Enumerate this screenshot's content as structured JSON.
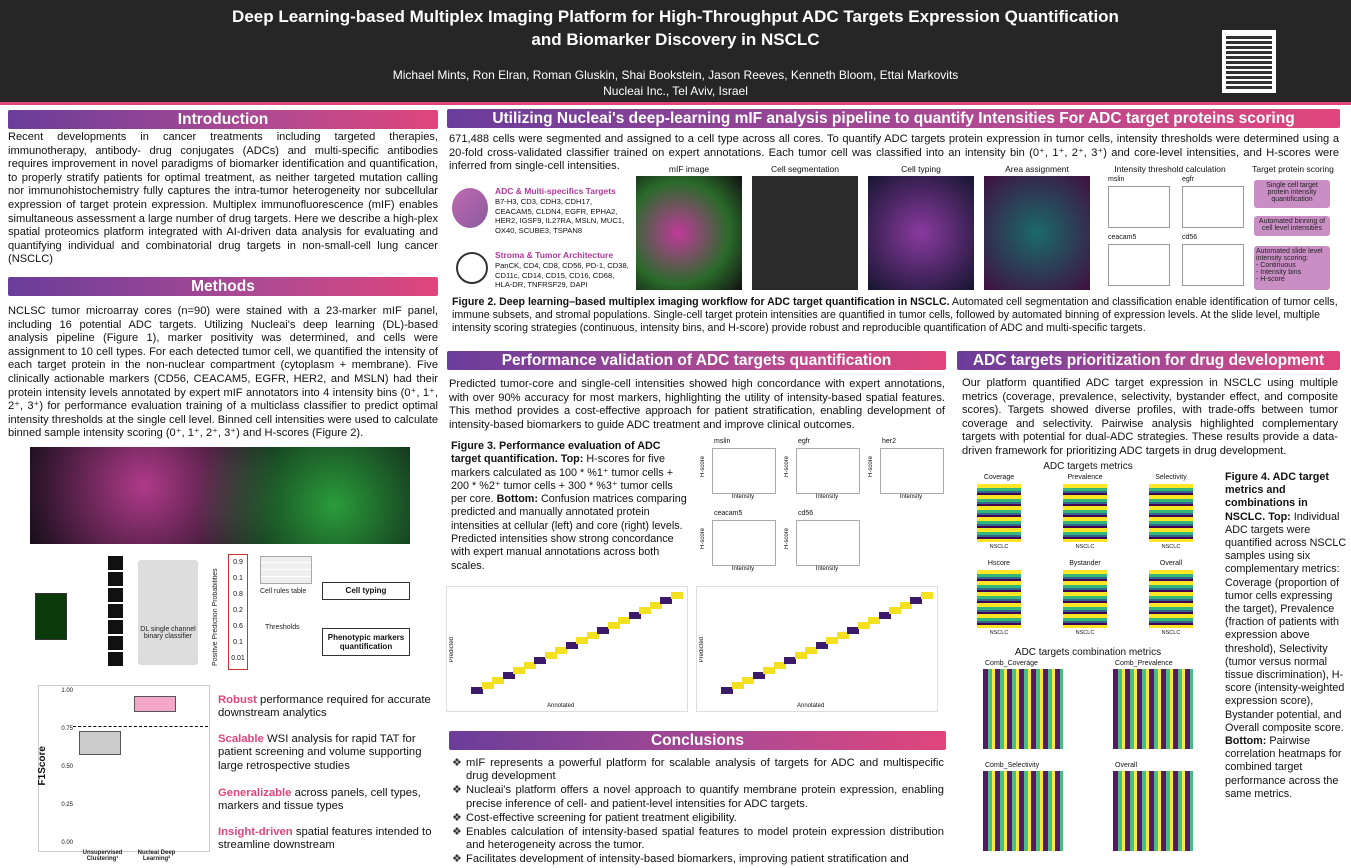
{
  "header": {
    "title_line1": "Deep Learning-based Multiplex Imaging Platform for High-Throughput ADC Targets Expression Quantification",
    "title_line2": "and Biomarker Discovery in NSCLC",
    "authors": "Michael Mints, Ron Elran, Roman Gluskin, Shai Bookstein, Jason Reeves, Kenneth Bloom, Ettai Markovits",
    "affiliation": "Nucleai Inc., Tel Aviv, Israel"
  },
  "introduction": {
    "heading": "Introduction",
    "text": "Recent developments in cancer treatments including targeted therapies, immunotherapy, antibody- drug conjugates (ADCs) and multi-specific antibodies requires improvement in novel paradigms of biomarker identification and quantification, to properly stratify patients for optimal treatment, as neither targeted mutation calling nor immunohistochemistry fully captures the intra-tumor heterogeneity nor subcellular expression of target protein expression. Multiplex immunofluorescence (mIF) enables simultaneous assessment a large number of drug targets. Here we describe a high-plex spatial proteomics platform integrated with AI-driven data analysis for evaluating and quantifying individual and combinatorial drug targets in non-small-cell lung cancer (NSCLC)"
  },
  "methods": {
    "heading": "Methods",
    "text": "NCLSC tumor microarray cores (n=90) were stained with a 23-marker mIF panel, including 16 potential ADC targets. Utilizing Nucleai's deep learning (DL)-based analysis pipeline (Figure 1), marker positivity was determined, and cells were assignment to 10 cell types. For each detected tumor cell, we quantified the intensity of each target protein in the non-nuclear compartment (cytoplasm + membrane). Five clinically actionable markers (CD56, CEACAM5, EGFR, HER2, and MSLN) had their protein intensity levels annotated by expert mIF annotators into 4 intensity bins (0⁺, 1⁺, 2⁺, 3⁺) for performance evaluation training of a multiclass classifier to predict optimal intensity thresholds at the single cell level. Binned cell intensities were used to calculate binned sample intensity scoring (0⁺, 1⁺, 2⁺, 3⁺) and H-scores (Figure 2).",
    "figure1": {
      "classifier": "DL single channel binary classifier",
      "prob_axis": "Positive Prediction Probabilities",
      "prob_ticks": [
        "0.9",
        "0.1",
        "0.8",
        "0.2",
        "0.6",
        "0.1",
        "0.01"
      ],
      "cell_rules": "Cell rules table",
      "thresholds": "Thresholds",
      "cell_typing": "Cell typing",
      "phenotypic": "Phenotypic markers quantification"
    },
    "boxplot": {
      "y_label": "F1Score",
      "y_ticks": [
        "1.00",
        "0.75",
        "0.50",
        "0.25",
        "0.00"
      ],
      "x_labels": [
        "Unsupervised Clustering¹",
        "Nucleai Deep Learning²"
      ]
    },
    "bullets": [
      {
        "lead": "Robust",
        "text": " performance required for accurate downstream analytics"
      },
      {
        "lead": "Scalable",
        "text": " WSI analysis for rapid TAT for patient screening and volume supporting large retrospective studies"
      },
      {
        "lead": "Generalizable",
        "text": " across panels, cell types, markers and tissue types"
      },
      {
        "lead": "Insight-driven",
        "text": " spatial features intended to streamline downstream"
      }
    ]
  },
  "pipeline": {
    "heading": "Utilizing Nucleai's deep-learning mIF analysis pipeline to quantify Intensities For ADC target proteins scoring",
    "text": "671,488 cells were segmented and assigned to a cell type across all cores. To quantify ADC targets protein expression in tumor cells, intensity thresholds were determined using a 20-fold cross-validated classifier trained on expert annotations. Each tumor cell was classified into an intensity bin (0⁺, 1⁺, 2⁺, 3⁺) and core-level intensities, and H-scores were inferred from single-cell intensities.",
    "adc_title": "ADC & Multi-specifics Targets",
    "adc_list": "B7-H3, CD3, CDH3, CDH17, CEACAM5, CLDN4, EGFR, EPHA2, HER2, IGSF9, IL27RA, MSLN, MUC1, OX40, SCUBE3, TSPAN8",
    "stroma_title": "Stroma & Tumor Architecture",
    "stroma_list": "PanCK, CD4, CD8, CD56, PD-1, CD38, CD11c, CD14, CD15, CD16, CD68, HLA-DR, TNFRSF29, DAPI",
    "steps": [
      "mIF image",
      "Cell segmentation",
      "Cell typing",
      "Area assignment",
      "Intensity threshold calculation",
      "Target protein scoring"
    ],
    "plot_titles": [
      "mslin",
      "egfr",
      "ceacam5",
      "cd56"
    ],
    "scoring_boxes": [
      "Single cell target protein intensity quantification",
      "Automated binning of cell level intensities",
      "Automated slide level intensity scoring:\n- Continuous\n- Intensity bins\n- H-score"
    ],
    "caption_bold": "Figure 2. Deep learning–based multiplex imaging workflow for ADC target quantification in NSCLC.",
    "caption": " Automated cell segmentation and classification enable identification of tumor cells, immune subsets, and stromal populations. Single-cell target protein intensities are quantified in tumor cells, followed by automated binning of expression levels. At the slide level, multiple intensity scoring strategies (continuous, intensity bins, and H-score) provide robust and reproducible quantification of ADC and multi-specific targets."
  },
  "performance": {
    "heading": "Performance validation of ADC targets quantification",
    "text": "Predicted tumor-core and single-cell intensities showed high concordance with expert annotations, with over 90% accuracy for most markers, highlighting the utility of intensity-based spatial features. This method provides a cost-effective approach for patient stratification, enabling development of intensity-based biomarkers to guide ADC treatment and improve clinical outcomes.",
    "caption_bold": "Figure 3. Performance evaluation of ADC target quantification. Top:",
    "caption": " H-scores for five markers calculated as 100 * %1⁺ tumor cells + 200 * %2⁺ tumor cells + 300 * %3⁺ tumor cells per core.",
    "caption_bold2": "Bottom:",
    "caption2": " Confusion matrices comparing predicted and manually annotated protein intensities at cellular (left) and core (right) levels. Predicted intensities show strong concordance with expert manual annotations across both scales.",
    "plot_titles": [
      "mslin",
      "egfr",
      "her2",
      "ceacam5",
      "cd56"
    ],
    "plot_x": "Intensity",
    "plot_y": "H-score",
    "cm_x": "Annotated",
    "cm_y": "Predicted"
  },
  "prioritization": {
    "heading": "ADC targets prioritization for drug development",
    "text": "Our platform quantified ADC target expression in NSCLC using multiple metrics (coverage, prevalence, selectivity, bystander effect, and composite scores). Targets showed diverse profiles, with trade-offs between tumor coverage and selectivity. Pairwise analysis highlighted complementary targets with potential for dual-ADC strategies. These results provide a data-driven framework for prioritizing ADC targets in drug development.",
    "metrics_title": "ADC targets metrics",
    "metrics": [
      "Coverage",
      "Prevalence",
      "Selectivity",
      "Hscore",
      "Bystander",
      "Overall"
    ],
    "metrics_x": "NSCLC",
    "combo_title": "ADC targets combination metrics",
    "combos": [
      "Comb_Coverage",
      "Comb_Prevalence",
      "Comb_Selectivity",
      "Overall"
    ],
    "caption_bold": "Figure 4. ADC target metrics and combinations in NSCLC. Top:",
    "caption": " Individual ADC targets were quantified across NSCLC samples using six complementary metrics: Coverage (proportion of tumor cells expressing the target), Prevalence (fraction of patients with expression above threshold), Selectivity (tumor versus normal tissue discrimination), H-score (intensity-weighted expression score), Bystander potential, and Overall composite score.",
    "caption_bold2": "Bottom:",
    "caption2": " Pairwise correlation heatmaps for combined target performance across the same metrics."
  },
  "conclusions": {
    "heading": "Conclusions",
    "bullets": [
      "mIF represents a powerful platform for scalable analysis of targets for ADC and multispecific drug development",
      "Nucleai's platform offers a novel approach to quantify membrane protein expression, enabling precise inference of cell- and patient-level intensities for ADC targets.",
      "Cost-effective screening for patient treatment eligibility.",
      "Enables calculation of intensity-based spatial features to model protein expression distribution and heterogeneity across the tumor.",
      "Facilitates development of intensity-based biomarkers, improving patient stratification and"
    ]
  }
}
